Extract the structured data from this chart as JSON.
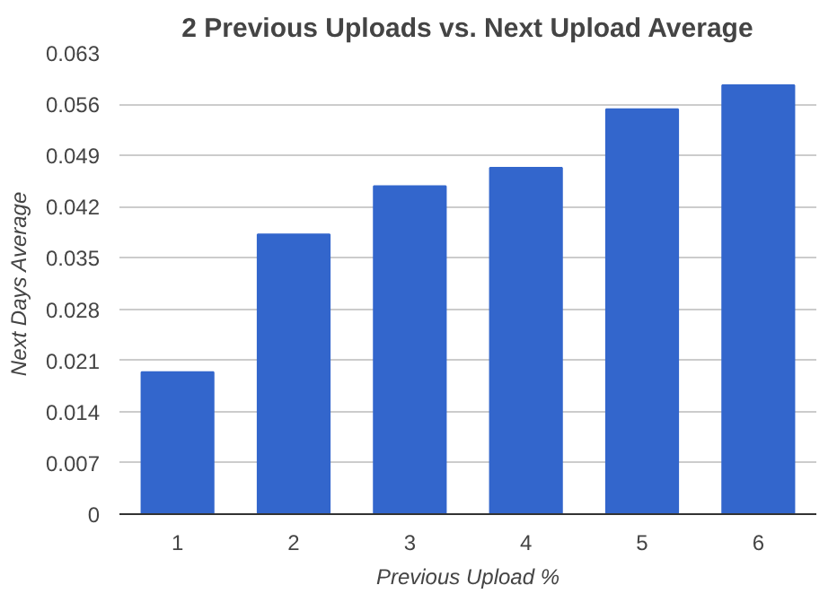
{
  "chart_data": {
    "type": "bar",
    "title": "2 Previous Uploads vs. Next Upload Average",
    "xlabel": "Previous Upload %",
    "ylabel": "Next Days Average",
    "categories": [
      "1",
      "2",
      "3",
      "4",
      "5",
      "6"
    ],
    "values": [
      0.0194,
      0.0382,
      0.0448,
      0.0473,
      0.0553,
      0.0586
    ],
    "color": "#3366cc",
    "ylim": [
      0,
      0.063
    ],
    "yticks": [
      0,
      0.007,
      0.014,
      0.021,
      0.028,
      0.035,
      0.042,
      0.049,
      0.056,
      0.063
    ],
    "grid": "y"
  }
}
